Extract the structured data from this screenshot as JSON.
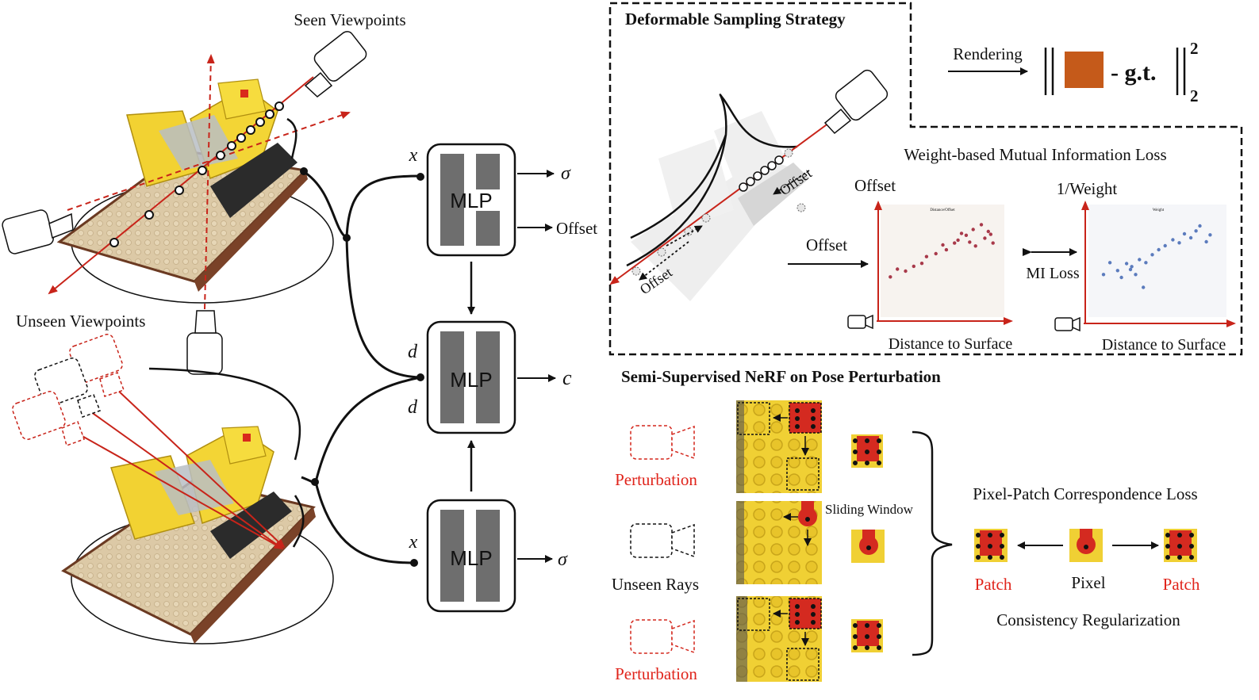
{
  "left": {
    "seen_label": "Seen Viewpoints",
    "unseen_label": "Unseen Viewpoints"
  },
  "mlp": {
    "label": "MLP",
    "inputs": {
      "x_top": "x",
      "d_top": "d",
      "d_bottom": "d",
      "x_bottom": "x"
    },
    "outputs": {
      "sigma_top": "σ",
      "offset": "Offset",
      "c": "c",
      "sigma_bottom": "σ"
    }
  },
  "deformable": {
    "title": "Deformable Sampling Strategy",
    "rendering_label": "Rendering",
    "gt_label": "- g.t.",
    "norm_sup": "2",
    "norm_sub": "2",
    "ray_offset_label_1": "Offset",
    "ray_offset_label_2": "Offset",
    "patch_color": "#c55a1a"
  },
  "mi": {
    "title": "Weight-based Mutual Information Loss",
    "offset_arrow_label": "Offset",
    "plot1": {
      "ylabel": "Offset",
      "xlabel": "Distance to Surface",
      "inner_title": "Distance/Offset"
    },
    "plot2": {
      "ylabel": "1/Weight",
      "xlabel": "Distance to Surface",
      "inner_title": "Weight"
    },
    "loss_label": "MI Loss"
  },
  "chart_data": [
    {
      "type": "scatter",
      "title": "Distance/Offset",
      "xlabel": "Distance to Surface",
      "ylabel": "Offset",
      "color": "#a8394a",
      "xlim": [
        0,
        10
      ],
      "ylim": [
        0,
        10
      ],
      "x": [
        0.5,
        1.1,
        1.8,
        2.5,
        3.2,
        3.6,
        4.4,
        5.0,
        5.3,
        6.0,
        6.3,
        6.6,
        7.0,
        7.3,
        7.6,
        7.8,
        8.3,
        8.6,
        8.9,
        9.1,
        9.3
      ],
      "y": [
        3.5,
        4.3,
        4.1,
        4.6,
        4.9,
        5.6,
        5.9,
        6.8,
        6.3,
        7.0,
        7.3,
        8.0,
        7.8,
        7.1,
        8.4,
        6.7,
        8.9,
        7.5,
        8.2,
        7.9,
        7.0
      ]
    },
    {
      "type": "scatter",
      "title": "Weight",
      "xlabel": "Distance to Surface",
      "ylabel": "1/Weight",
      "color": "#5b7bbd",
      "xlim": [
        0,
        10
      ],
      "ylim": [
        0,
        10
      ],
      "x": [
        0.8,
        1.3,
        1.9,
        2.2,
        2.6,
        3.0,
        3.3,
        3.6,
        4.1,
        4.6,
        5.1,
        5.6,
        6.2,
        6.7,
        7.1,
        7.6,
        8.0,
        8.3,
        8.8,
        9.1,
        3.9,
        2.9
      ],
      "y": [
        3.9,
        5.1,
        4.3,
        3.6,
        5.0,
        4.7,
        3.9,
        5.4,
        5.1,
        5.9,
        6.4,
        6.8,
        7.4,
        7.1,
        8.0,
        7.6,
        8.3,
        8.8,
        7.2,
        7.9,
        2.6,
        4.4
      ]
    }
  ],
  "semi": {
    "title": "Semi-Supervised NeRF on Pose Perturbation",
    "perturbation_top": "Perturbation",
    "unseen_rays": "Unseen Rays",
    "perturbation_bottom": "Perturbation",
    "sliding_window": "Sliding Window",
    "pixel_patch_loss": "Pixel-Patch Correspondence Loss",
    "patch_left": "Patch",
    "pixel": "Pixel",
    "patch_right": "Patch",
    "consistency": "Consistency Regularization"
  },
  "colors": {
    "accent_red": "#d42a20",
    "lego_yellow": "#f2d232",
    "lego_base": "#d9c6a2",
    "mlp_bar": "#6e6e6e"
  }
}
